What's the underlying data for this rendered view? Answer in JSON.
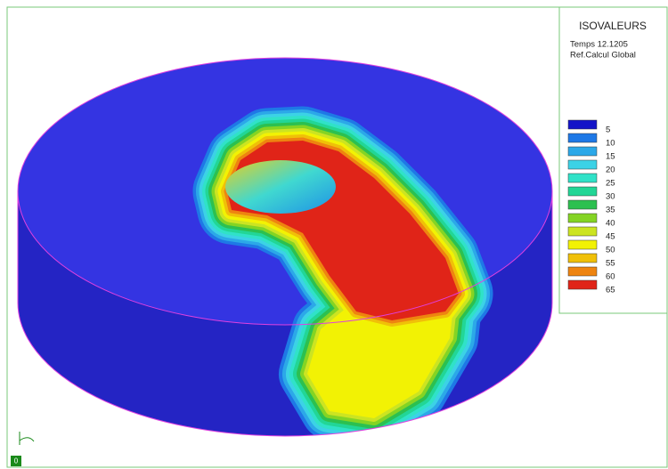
{
  "panel": {
    "title": "ISOVALEURS",
    "time": "Temps 12.1205",
    "reference": "Ref.Calcul Global",
    "legend": [
      {
        "label": 5,
        "color": "#1414c8"
      },
      {
        "label": 10,
        "color": "#1e78e6"
      },
      {
        "label": 15,
        "color": "#2ca8e8"
      },
      {
        "label": 20,
        "color": "#3cd2e6"
      },
      {
        "label": 25,
        "color": "#30e2c8"
      },
      {
        "label": 30,
        "color": "#22d696"
      },
      {
        "label": 35,
        "color": "#2cc050"
      },
      {
        "label": 40,
        "color": "#84d424"
      },
      {
        "label": 45,
        "color": "#cce422"
      },
      {
        "label": 50,
        "color": "#f2f204"
      },
      {
        "label": 55,
        "color": "#f0c008"
      },
      {
        "label": 60,
        "color": "#ee8410"
      },
      {
        "label": 65,
        "color": "#e02418"
      }
    ]
  },
  "axes_badge": "0"
}
